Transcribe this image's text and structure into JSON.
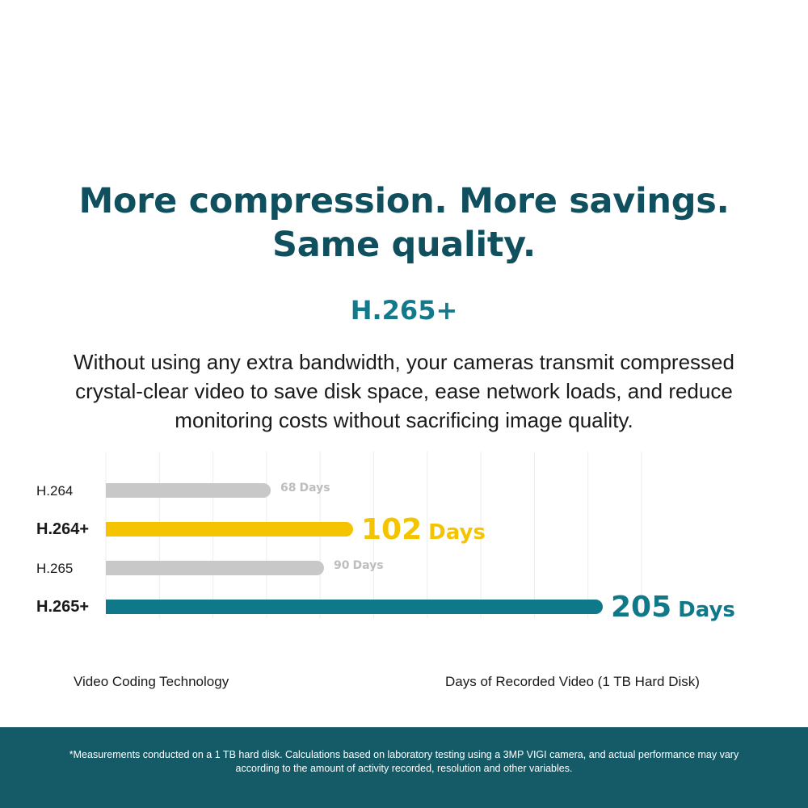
{
  "headline": {
    "line1": "More compression. More savings.",
    "line2": "Same quality."
  },
  "subtitle": "H.265+",
  "description": {
    "line1": "Without using any extra bandwidth, your cameras transmit compressed",
    "line2": "crystal-clear video to save disk space, ease network loads, and reduce",
    "line3": "monitoring costs without sacrificing image quality."
  },
  "colors": {
    "headline": "#0f4f5e",
    "subtitle": "#137a8c",
    "bar_gray": "#c8c8c8",
    "bar_yellow": "#f5c400",
    "bar_teal": "#107989",
    "label_gray": "#bdbdbd",
    "footer": "#155b67",
    "gridline": "#ececec"
  },
  "chart_data": {
    "type": "bar",
    "orientation": "horizontal",
    "categories": [
      "H.264",
      "H.264+",
      "H.265",
      "H.265+"
    ],
    "values": [
      68,
      102,
      90,
      205
    ],
    "value_labels": [
      {
        "number": "68",
        "unit": "Days"
      },
      {
        "number": "102",
        "unit": "Days"
      },
      {
        "number": "90",
        "unit": "Days"
      },
      {
        "number": "205",
        "unit": "Days"
      }
    ],
    "highlighted": [
      false,
      true,
      false,
      true
    ],
    "bar_colors": [
      "#c8c8c8",
      "#f5c400",
      "#c8c8c8",
      "#107989"
    ],
    "value_label_colors": [
      "#bdbdbd",
      "#f5c400",
      "#bdbdbd",
      "#107989"
    ],
    "xlabel": "Days of Recorded Video (1 TB Hard Disk)",
    "ylabel": "Video Coding Technology",
    "xlim": [
      0,
      225
    ],
    "grid": true,
    "legend": "none"
  },
  "footnote": {
    "line1": "*Measurements conducted on a 1 TB hard disk. Calculations based on laboratory testing using a 3MP VIGI camera, and actual performance may vary",
    "line2": "according to the amount of activity recorded, resolution and other variables."
  }
}
